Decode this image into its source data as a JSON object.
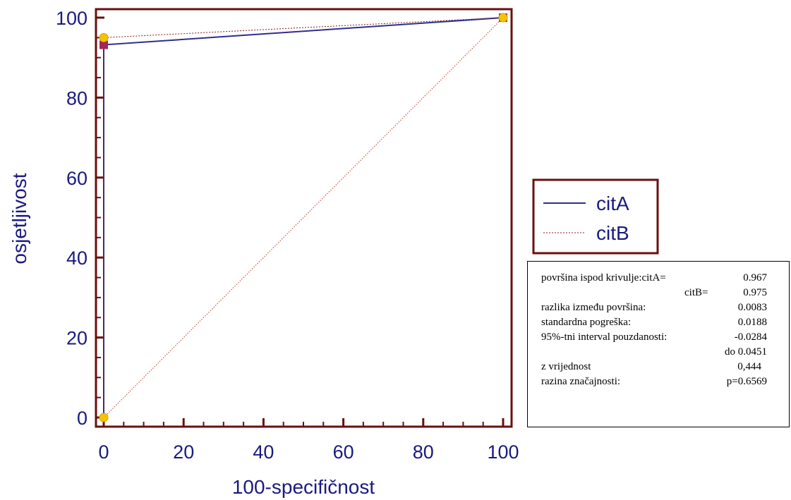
{
  "chart_data": {
    "type": "line",
    "xlabel": "100-specifičnost",
    "ylabel": "osjetljivost",
    "xlim": [
      0,
      100
    ],
    "ylim": [
      0,
      100
    ],
    "x_ticks": [
      "0",
      "20",
      "40",
      "60",
      "80",
      "100"
    ],
    "y_ticks": [
      "0",
      "20",
      "40",
      "60",
      "80",
      "100"
    ],
    "series": [
      {
        "name": "citA",
        "color": "#2e2e8f",
        "style": "solid",
        "x": [
          0,
          0,
          100
        ],
        "y": [
          0,
          93.2,
          100
        ]
      },
      {
        "name": "citB",
        "color": "#8b1a1a",
        "style": "dotted",
        "x": [
          0,
          0,
          100
        ],
        "y": [
          0,
          95.0,
          100
        ]
      }
    ],
    "reference_line": {
      "x": [
        0,
        100
      ],
      "y": [
        0,
        100
      ],
      "color": "#c0392b",
      "style": "dotted"
    },
    "markers": {
      "citA": {
        "shape": "square",
        "color": "#a0285a",
        "x": [
          0,
          100
        ],
        "y": [
          93.2,
          100
        ]
      },
      "citB": {
        "shape": "circle",
        "color": "#f5c400",
        "x": [
          0,
          0,
          100
        ],
        "y": [
          0,
          95.0,
          100
        ]
      }
    },
    "legend": {
      "placement": "right",
      "entries": [
        {
          "label": "citA",
          "style": "solid",
          "color": "#2e2e8f"
        },
        {
          "label": "citB",
          "style": "dotted",
          "color": "#8b1a1a"
        }
      ]
    },
    "frame_color": "#6b0f0f"
  },
  "stats": {
    "rows": [
      {
        "label": "površina ispod krivulje:citA=",
        "value": "0.967"
      },
      {
        "label": "citB=",
        "value": "0.975"
      },
      {
        "label": "razlika između površina:",
        "value": "0.0083"
      },
      {
        "label": "standardna pogreška:",
        "value": "0.0188"
      },
      {
        "label": "95%-tni interval pouzdanosti:",
        "value": "-0.0284"
      },
      {
        "label": "",
        "value": "do 0.0451"
      },
      {
        "label": "z vrijednost",
        "value": "0,444"
      },
      {
        "label": "razina značajnosti:",
        "value": "p=0.6569"
      }
    ]
  }
}
